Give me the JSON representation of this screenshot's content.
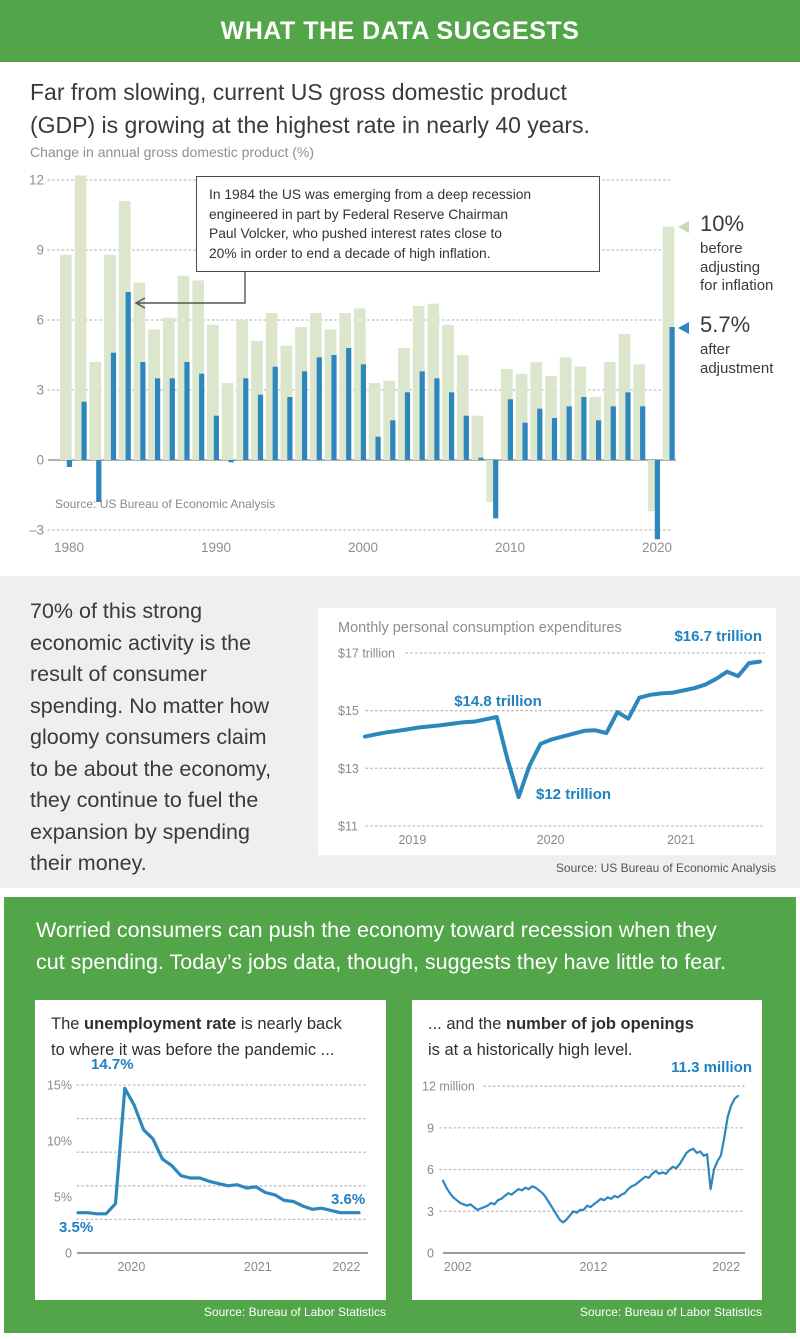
{
  "palette": {
    "green": "#52a548",
    "light_bar": "#dbe6cd",
    "blue": "#2d87bd",
    "blue_text": "#1f80c2",
    "grid": "#bdbdbd",
    "axis": "#b0b0b0"
  },
  "header": {
    "title": "WHAT THE DATA SUGGESTS"
  },
  "intro": {
    "heading_lines": [
      "Far from slowing, current US gross domestic product",
      "(GDP) is growing at the highest rate in nearly 40 years."
    ],
    "chart_label": "Change in annual gross domestic product (%)"
  },
  "section2": {
    "paragraph_lines": [
      "70% of this strong",
      "economic activity is the",
      "result of consumer",
      "spending. No matter how",
      "gloomy consumers claim",
      "to be about the economy,",
      "they continue to fuel the",
      "expansion by spending",
      "their money."
    ]
  },
  "section3": {
    "heading_lines": [
      "Worried consumers can push the economy toward recession when they",
      "cut spending. Today’s jobs data, though, suggests they have little to fear."
    ],
    "left": {
      "title_pre": "The ",
      "title_bold": "unemployment rate",
      "title_line1_rest": " is nearly back",
      "title_line2": "to where it was before the pandemic ..."
    },
    "right": {
      "title_pre": "... and the ",
      "title_bold": "number of job openings",
      "title_line2": "is at a historically high level."
    }
  },
  "chart_data": [
    {
      "type": "bar",
      "name": "change-in-annual-gross-domestic-product",
      "title": "Change in annual gross domestic product (%)",
      "years_range": [
        1980,
        2021
      ],
      "series": [
        {
          "name": "before adjusting for inflation (nominal)",
          "values": [
            8.8,
            12.2,
            4.2,
            8.8,
            11.1,
            7.6,
            5.6,
            6.1,
            7.9,
            7.7,
            5.8,
            3.3,
            6.0,
            5.1,
            6.3,
            4.9,
            5.7,
            6.3,
            5.6,
            6.3,
            6.5,
            3.3,
            3.4,
            4.8,
            6.6,
            6.7,
            5.8,
            4.5,
            1.9,
            -1.8,
            3.9,
            3.7,
            4.2,
            3.6,
            4.4,
            4.0,
            2.7,
            4.2,
            5.4,
            4.1,
            -2.2,
            10.0
          ]
        },
        {
          "name": "after adjustment (real)",
          "values": [
            -0.3,
            2.5,
            -1.8,
            4.6,
            7.2,
            4.2,
            3.5,
            3.5,
            4.2,
            3.7,
            1.9,
            -0.1,
            3.5,
            2.8,
            4.0,
            2.7,
            3.8,
            4.4,
            4.5,
            4.8,
            4.1,
            1.0,
            1.7,
            2.9,
            3.8,
            3.5,
            2.9,
            1.9,
            0.1,
            -2.5,
            2.6,
            1.6,
            2.2,
            1.8,
            2.3,
            2.7,
            1.7,
            2.3,
            2.9,
            2.3,
            -3.4,
            5.7
          ]
        }
      ],
      "ylim": [
        -3.5,
        12.5
      ],
      "yticks": [
        {
          "v": 12,
          "label": "12"
        },
        {
          "v": 9,
          "label": "9"
        },
        {
          "v": 6,
          "label": "6"
        },
        {
          "v": 3,
          "label": "3"
        },
        {
          "v": 0,
          "label": "0"
        },
        {
          "v": -3,
          "label": "–3"
        }
      ],
      "xticks": [
        1980,
        1990,
        2000,
        2010,
        2020
      ],
      "annotation_lines": [
        "In 1984 the US was emerging from a deep recession",
        "engineered in part by Federal Reserve Chairman",
        "Paul Volcker, who pushed interest rates close to",
        "20% in order to end a decade of high inflation."
      ],
      "callouts": {
        "nominal": {
          "value": "10%",
          "lines": [
            "before",
            "adjusting",
            "for inflation"
          ]
        },
        "real": {
          "value": "5.7%",
          "lines": [
            "after",
            "adjustment"
          ]
        }
      },
      "source": "Source: US Bureau of Economic Analysis"
    },
    {
      "type": "line",
      "name": "monthly-personal-consumption-expenditures",
      "title": "Monthly personal consumption expenditures",
      "unit": "trillion USD",
      "x_start": "2019-02",
      "x_end": "2022-02",
      "values": [
        14.1,
        14.18,
        14.25,
        14.3,
        14.36,
        14.42,
        14.46,
        14.5,
        14.55,
        14.6,
        14.62,
        14.7,
        14.78,
        13.3,
        12.0,
        13.1,
        13.85,
        14.0,
        14.1,
        14.2,
        14.3,
        14.32,
        14.22,
        14.95,
        14.72,
        15.45,
        15.55,
        15.6,
        15.62,
        15.7,
        15.78,
        15.9,
        16.1,
        16.35,
        16.2,
        16.65,
        16.7
      ],
      "ylim": [
        11,
        17
      ],
      "yticks": [
        {
          "v": 17,
          "label": "$17 trillion"
        },
        {
          "v": 15,
          "label": "$15"
        },
        {
          "v": 13,
          "label": "$13"
        },
        {
          "v": 11,
          "label": "$11"
        }
      ],
      "xticks": [
        {
          "label": "2019",
          "f": 0.12
        },
        {
          "label": "2020",
          "f": 0.47
        },
        {
          "label": "2021",
          "f": 0.8
        }
      ],
      "annotations": {
        "peak": {
          "label": "$14.8 trillion",
          "index": 12
        },
        "trough": {
          "label": "$12 trillion",
          "index": 14
        },
        "latest": {
          "label": "$16.7 trillion",
          "index": 36
        }
      },
      "source": "Source: US Bureau of Economic Analysis"
    },
    {
      "type": "line",
      "name": "unemployment-rate",
      "unit": "percent",
      "x_start": "2019-11",
      "x_end": "2022-05",
      "values": [
        3.6,
        3.6,
        3.5,
        3.5,
        4.4,
        14.7,
        13.2,
        11.0,
        10.2,
        8.4,
        7.8,
        6.9,
        6.7,
        6.7,
        6.4,
        6.2,
        6.0,
        6.1,
        5.8,
        5.9,
        5.4,
        5.2,
        4.7,
        4.6,
        4.2,
        3.9,
        4.0,
        3.8,
        3.6,
        3.6,
        3.6
      ],
      "ylim": [
        0,
        15.5
      ],
      "yticks": [
        {
          "v": 15,
          "label": "15%"
        },
        {
          "v": 10,
          "label": "10%"
        },
        {
          "v": 5,
          "label": "5%"
        },
        {
          "v": 0,
          "label": "0"
        }
      ],
      "gridlines": [
        15,
        12,
        9,
        6,
        3
      ],
      "xticks": [
        {
          "label": "2020",
          "f": 0.19
        },
        {
          "label": "2021",
          "f": 0.64
        },
        {
          "label": "2022",
          "f": 0.955
        }
      ],
      "annotations": {
        "peak": "14.7%",
        "start": "3.5%",
        "end": "3.6%"
      },
      "source": "Source: Bureau of Labor Statistics"
    },
    {
      "type": "line",
      "name": "number-of-job-openings",
      "unit": "million",
      "x_start": "2000-12",
      "x_end": "2022-03",
      "values": [
        5.2,
        4.7,
        4.3,
        4.0,
        3.8,
        3.6,
        3.5,
        3.4,
        3.5,
        3.3,
        3.1,
        3.2,
        3.3,
        3.4,
        3.6,
        3.5,
        3.8,
        3.9,
        4.1,
        4.3,
        4.2,
        4.4,
        4.6,
        4.5,
        4.7,
        4.6,
        4.8,
        4.7,
        4.5,
        4.3,
        4.0,
        3.6,
        3.2,
        2.8,
        2.4,
        2.2,
        2.4,
        2.7,
        3.0,
        2.9,
        3.1,
        3.1,
        3.4,
        3.3,
        3.5,
        3.7,
        3.9,
        3.8,
        4.0,
        3.9,
        4.1,
        4.0,
        4.2,
        4.3,
        4.6,
        4.8,
        4.9,
        5.1,
        5.3,
        5.5,
        5.4,
        5.7,
        5.9,
        5.7,
        5.8,
        5.7,
        6.0,
        6.2,
        6.1,
        6.4,
        6.8,
        7.2,
        7.4,
        7.5,
        7.2,
        7.3,
        7.0,
        7.1,
        4.6,
        6.0,
        6.6,
        7.0,
        8.3,
        9.8,
        10.6,
        11.1,
        11.3
      ],
      "ylim": [
        0,
        12.5
      ],
      "yticks": [
        {
          "v": 12,
          "label": "12 million"
        },
        {
          "v": 9,
          "label": "9"
        },
        {
          "v": 6,
          "label": "6"
        },
        {
          "v": 3,
          "label": "3"
        },
        {
          "v": 0,
          "label": "0"
        }
      ],
      "gridlines": [
        12,
        9,
        6,
        3
      ],
      "xticks": [
        {
          "label": "2002",
          "f": 0.05
        },
        {
          "label": "2012",
          "f": 0.51
        },
        {
          "label": "2022",
          "f": 0.96
        }
      ],
      "annotations": {
        "latest": "11.3 million"
      },
      "source": "Source: Bureau of Labor Statistics"
    }
  ]
}
